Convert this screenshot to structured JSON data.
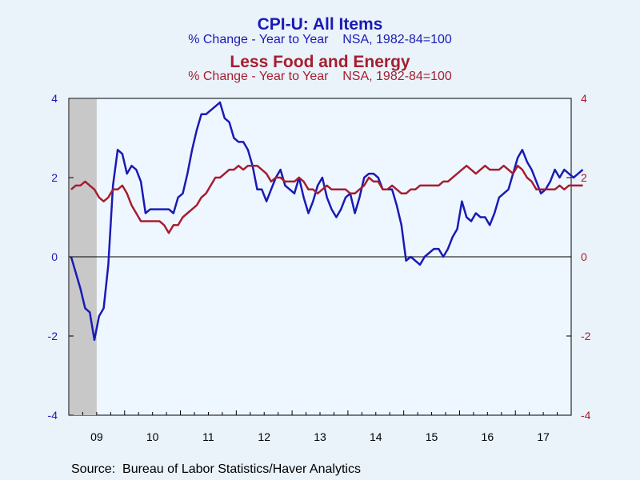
{
  "chart_data": {
    "type": "line",
    "title": "CPI-U: All Items",
    "subtitle": "% Change - Year to Year    NSA, 1982-84=100",
    "title2": "Less Food and Energy",
    "subtitle2": "% Change - Year to Year    NSA, 1982-84=100",
    "source": "Source:  Bureau of Labor Statistics/Haver Analytics",
    "x_start": "2009-01",
    "x_end": "2017-12",
    "x_tick_labels": [
      "09",
      "10",
      "11",
      "12",
      "13",
      "14",
      "15",
      "16",
      "17"
    ],
    "ylim": [
      -4,
      4
    ],
    "y_ticks_left": [
      "4",
      "2",
      "0",
      "-2",
      "-4"
    ],
    "y_ticks_right": [
      "4",
      "2",
      "0",
      "-2",
      "-4"
    ],
    "recession_shading": [
      "2009-01",
      "2009-06"
    ],
    "grid": false,
    "zero_line": true,
    "series": [
      {
        "color": "#1a1ab4",
        "axis": "left",
        "values": [
          0.0,
          -0.4,
          -0.8,
          -1.3,
          -1.4,
          -2.1,
          -1.5,
          -1.3,
          -0.2,
          1.8,
          2.7,
          2.6,
          2.1,
          2.3,
          2.2,
          1.9,
          1.1,
          1.2,
          1.2,
          1.2,
          1.2,
          1.2,
          1.1,
          1.5,
          1.6,
          2.1,
          2.7,
          3.2,
          3.6,
          3.6,
          3.7,
          3.8,
          3.9,
          3.5,
          3.4,
          3.0,
          2.9,
          2.9,
          2.7,
          2.3,
          1.7,
          1.7,
          1.4,
          1.7,
          2.0,
          2.2,
          1.8,
          1.7,
          1.6,
          2.0,
          1.5,
          1.1,
          1.4,
          1.8,
          2.0,
          1.5,
          1.2,
          1.0,
          1.2,
          1.5,
          1.6,
          1.1,
          1.5,
          2.0,
          2.1,
          2.1,
          2.0,
          1.7,
          1.7,
          1.7,
          1.3,
          0.8,
          -0.1,
          0.0,
          -0.1,
          -0.2,
          0.0,
          0.1,
          0.2,
          0.2,
          0.0,
          0.2,
          0.5,
          0.7,
          1.4,
          1.0,
          0.9,
          1.1,
          1.0,
          1.0,
          0.8,
          1.1,
          1.5,
          1.6,
          1.7,
          2.1,
          2.5,
          2.7,
          2.4,
          2.2,
          1.9,
          1.6,
          1.7,
          1.9,
          2.2,
          2.0,
          2.2,
          2.1,
          2.0,
          2.1,
          2.2
        ]
      },
      {
        "color": "#a51e2f",
        "axis": "right",
        "values": [
          1.7,
          1.8,
          1.8,
          1.9,
          1.8,
          1.7,
          1.5,
          1.4,
          1.5,
          1.7,
          1.7,
          1.8,
          1.6,
          1.3,
          1.1,
          0.9,
          0.9,
          0.9,
          0.9,
          0.9,
          0.8,
          0.6,
          0.8,
          0.8,
          1.0,
          1.1,
          1.2,
          1.3,
          1.5,
          1.6,
          1.8,
          2.0,
          2.0,
          2.1,
          2.2,
          2.2,
          2.3,
          2.2,
          2.3,
          2.3,
          2.3,
          2.2,
          2.1,
          1.9,
          2.0,
          2.0,
          1.9,
          1.9,
          1.9,
          2.0,
          1.9,
          1.7,
          1.7,
          1.6,
          1.7,
          1.8,
          1.7,
          1.7,
          1.7,
          1.7,
          1.6,
          1.6,
          1.7,
          1.8,
          2.0,
          1.9,
          1.9,
          1.7,
          1.7,
          1.8,
          1.7,
          1.6,
          1.6,
          1.7,
          1.7,
          1.8,
          1.8,
          1.8,
          1.8,
          1.8,
          1.9,
          1.9,
          2.0,
          2.1,
          2.2,
          2.3,
          2.2,
          2.1,
          2.2,
          2.3,
          2.2,
          2.2,
          2.2,
          2.3,
          2.2,
          2.1,
          2.3,
          2.2,
          2.0,
          1.9,
          1.7,
          1.7,
          1.7,
          1.7,
          1.7,
          1.8,
          1.7,
          1.8,
          1.8,
          1.8,
          1.8
        ]
      }
    ]
  }
}
